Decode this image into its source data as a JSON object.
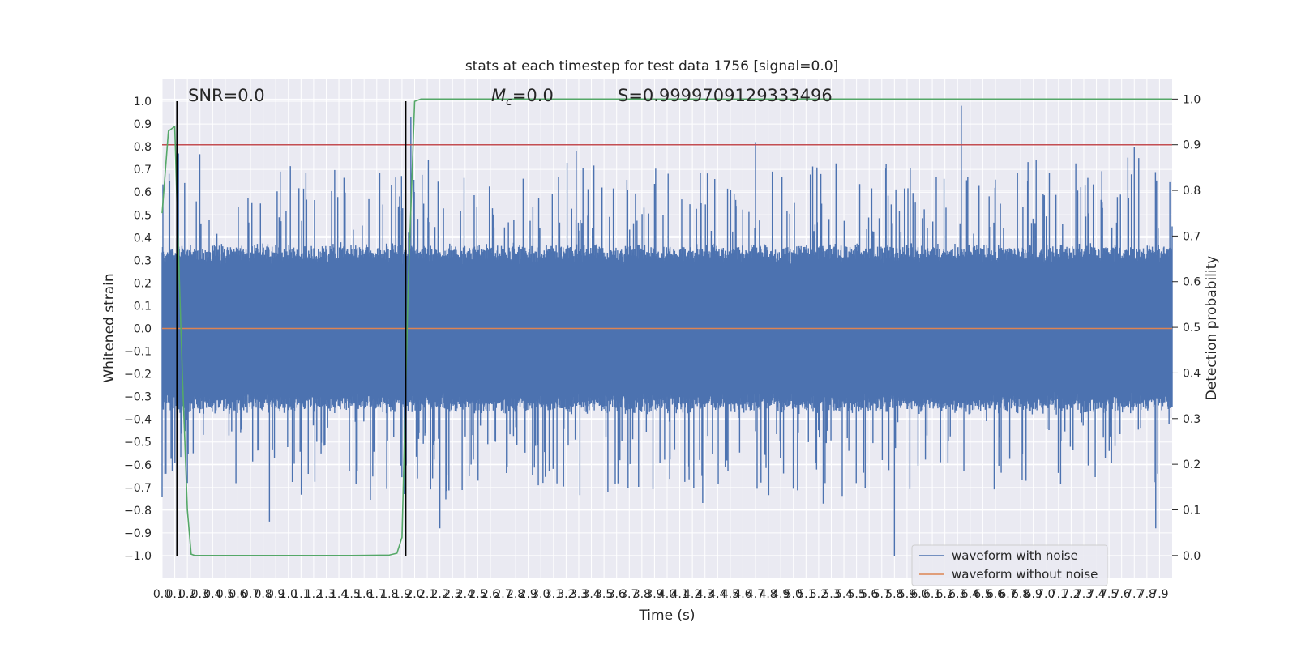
{
  "chart_data": {
    "type": "line",
    "title": "stats at each timestep for test data 1756 [signal=0.0]",
    "xlabel": "Time (s)",
    "ylabel": "Whitened strain",
    "y2label": "Detection probability",
    "annotations": {
      "snr": "SNR=0.0",
      "mc_symbol": "M",
      "mc_subscript": "c",
      "mc_value": "=0.0",
      "s": "S=0.9999709129333496"
    },
    "xlim": [
      0.0,
      8.0
    ],
    "ylim": [
      -1.1,
      1.1
    ],
    "y2lim": [
      -0.05,
      1.045
    ],
    "x_ticks": [
      "0.0",
      "0.1",
      "0.2",
      "0.3",
      "0.4",
      "0.5",
      "0.6",
      "0.7",
      "0.8",
      "0.9",
      "1.0",
      "1.1",
      "1.2",
      "1.3",
      "1.4",
      "1.5",
      "1.6",
      "1.7",
      "1.8",
      "1.9",
      "2.0",
      "2.1",
      "2.2",
      "2.3",
      "2.4",
      "2.5",
      "2.6",
      "2.7",
      "2.8",
      "2.9",
      "3.0",
      "3.1",
      "3.2",
      "3.3",
      "3.4",
      "3.5",
      "3.6",
      "3.7",
      "3.8",
      "3.9",
      "4.0",
      "4.1",
      "4.2",
      "4.3",
      "4.4",
      "4.5",
      "4.6",
      "4.7",
      "4.8",
      "4.9",
      "5.0",
      "5.1",
      "5.2",
      "5.3",
      "5.4",
      "5.5",
      "5.6",
      "5.7",
      "5.8",
      "5.9",
      "6.0",
      "6.1",
      "6.2",
      "6.3",
      "6.4",
      "6.5",
      "6.6",
      "6.7",
      "6.8",
      "6.9",
      "7.0",
      "7.1",
      "7.2",
      "7.3",
      "7.4",
      "7.5",
      "7.6",
      "7.7",
      "7.8",
      "7.9"
    ],
    "y_ticks": [
      "1.0",
      "0.9",
      "0.8",
      "0.7",
      "0.6",
      "0.5",
      "0.4",
      "0.3",
      "0.2",
      "0.1",
      "0.0",
      "−0.1",
      "−0.2",
      "−0.3",
      "−0.4",
      "−0.5",
      "−0.6",
      "−0.7",
      "−0.8",
      "−0.9",
      "−1.0"
    ],
    "y2_ticks": [
      "1.0",
      "0.9",
      "0.8",
      "0.7",
      "0.6",
      "0.5",
      "0.4",
      "0.3",
      "0.2",
      "0.1",
      "0.0"
    ],
    "grid": true,
    "legend_position": "lower-right",
    "series": [
      {
        "name": "waveform with noise",
        "color": "#4c72b0",
        "style": "dense noise trace, typical amplitude about ±0.35, occasional spikes to ±1.0",
        "spikes": [
          {
            "x": 0.0,
            "y": -0.74
          },
          {
            "x": 0.06,
            "y": 0.65
          },
          {
            "x": 0.13,
            "y": 0.77
          },
          {
            "x": 0.2,
            "y": -0.68
          },
          {
            "x": 0.85,
            "y": -0.85
          },
          {
            "x": 1.97,
            "y": 0.93
          },
          {
            "x": 2.2,
            "y": -0.88
          },
          {
            "x": 3.28,
            "y": 0.78
          },
          {
            "x": 4.7,
            "y": 0.82
          },
          {
            "x": 5.8,
            "y": -1.0
          },
          {
            "x": 6.33,
            "y": 0.98
          },
          {
            "x": 7.7,
            "y": 0.8
          },
          {
            "x": 7.87,
            "y": -0.88
          }
        ]
      },
      {
        "name": "waveform without noise",
        "color": "#dd8452",
        "x": [
          0.0,
          8.0
        ],
        "y": [
          0.0,
          0.0
        ]
      },
      {
        "name": "",
        "axis": "right",
        "color": "#55a868",
        "x": [
          0.0,
          0.05,
          0.1,
          0.12,
          0.16,
          0.2,
          0.23,
          0.26,
          0.3,
          1.0,
          1.5,
          1.8,
          1.86,
          1.9,
          1.95,
          2.0,
          2.05,
          2.1,
          3.0,
          5.0,
          8.0
        ],
        "y": [
          0.75,
          0.93,
          0.94,
          0.75,
          0.4,
          0.1,
          0.003,
          0.0,
          0.0,
          0.0,
          0.0,
          0.001,
          0.005,
          0.04,
          0.6,
          0.995,
          1.0,
          1.0,
          1.0,
          1.0,
          1.0
        ]
      }
    ],
    "hlines": [
      {
        "axis": "right",
        "y": 0.9,
        "color": "#c44e52"
      }
    ],
    "vlines": [
      {
        "x": 0.117,
        "color": "#000000"
      },
      {
        "x": 1.93,
        "color": "#000000"
      }
    ]
  }
}
